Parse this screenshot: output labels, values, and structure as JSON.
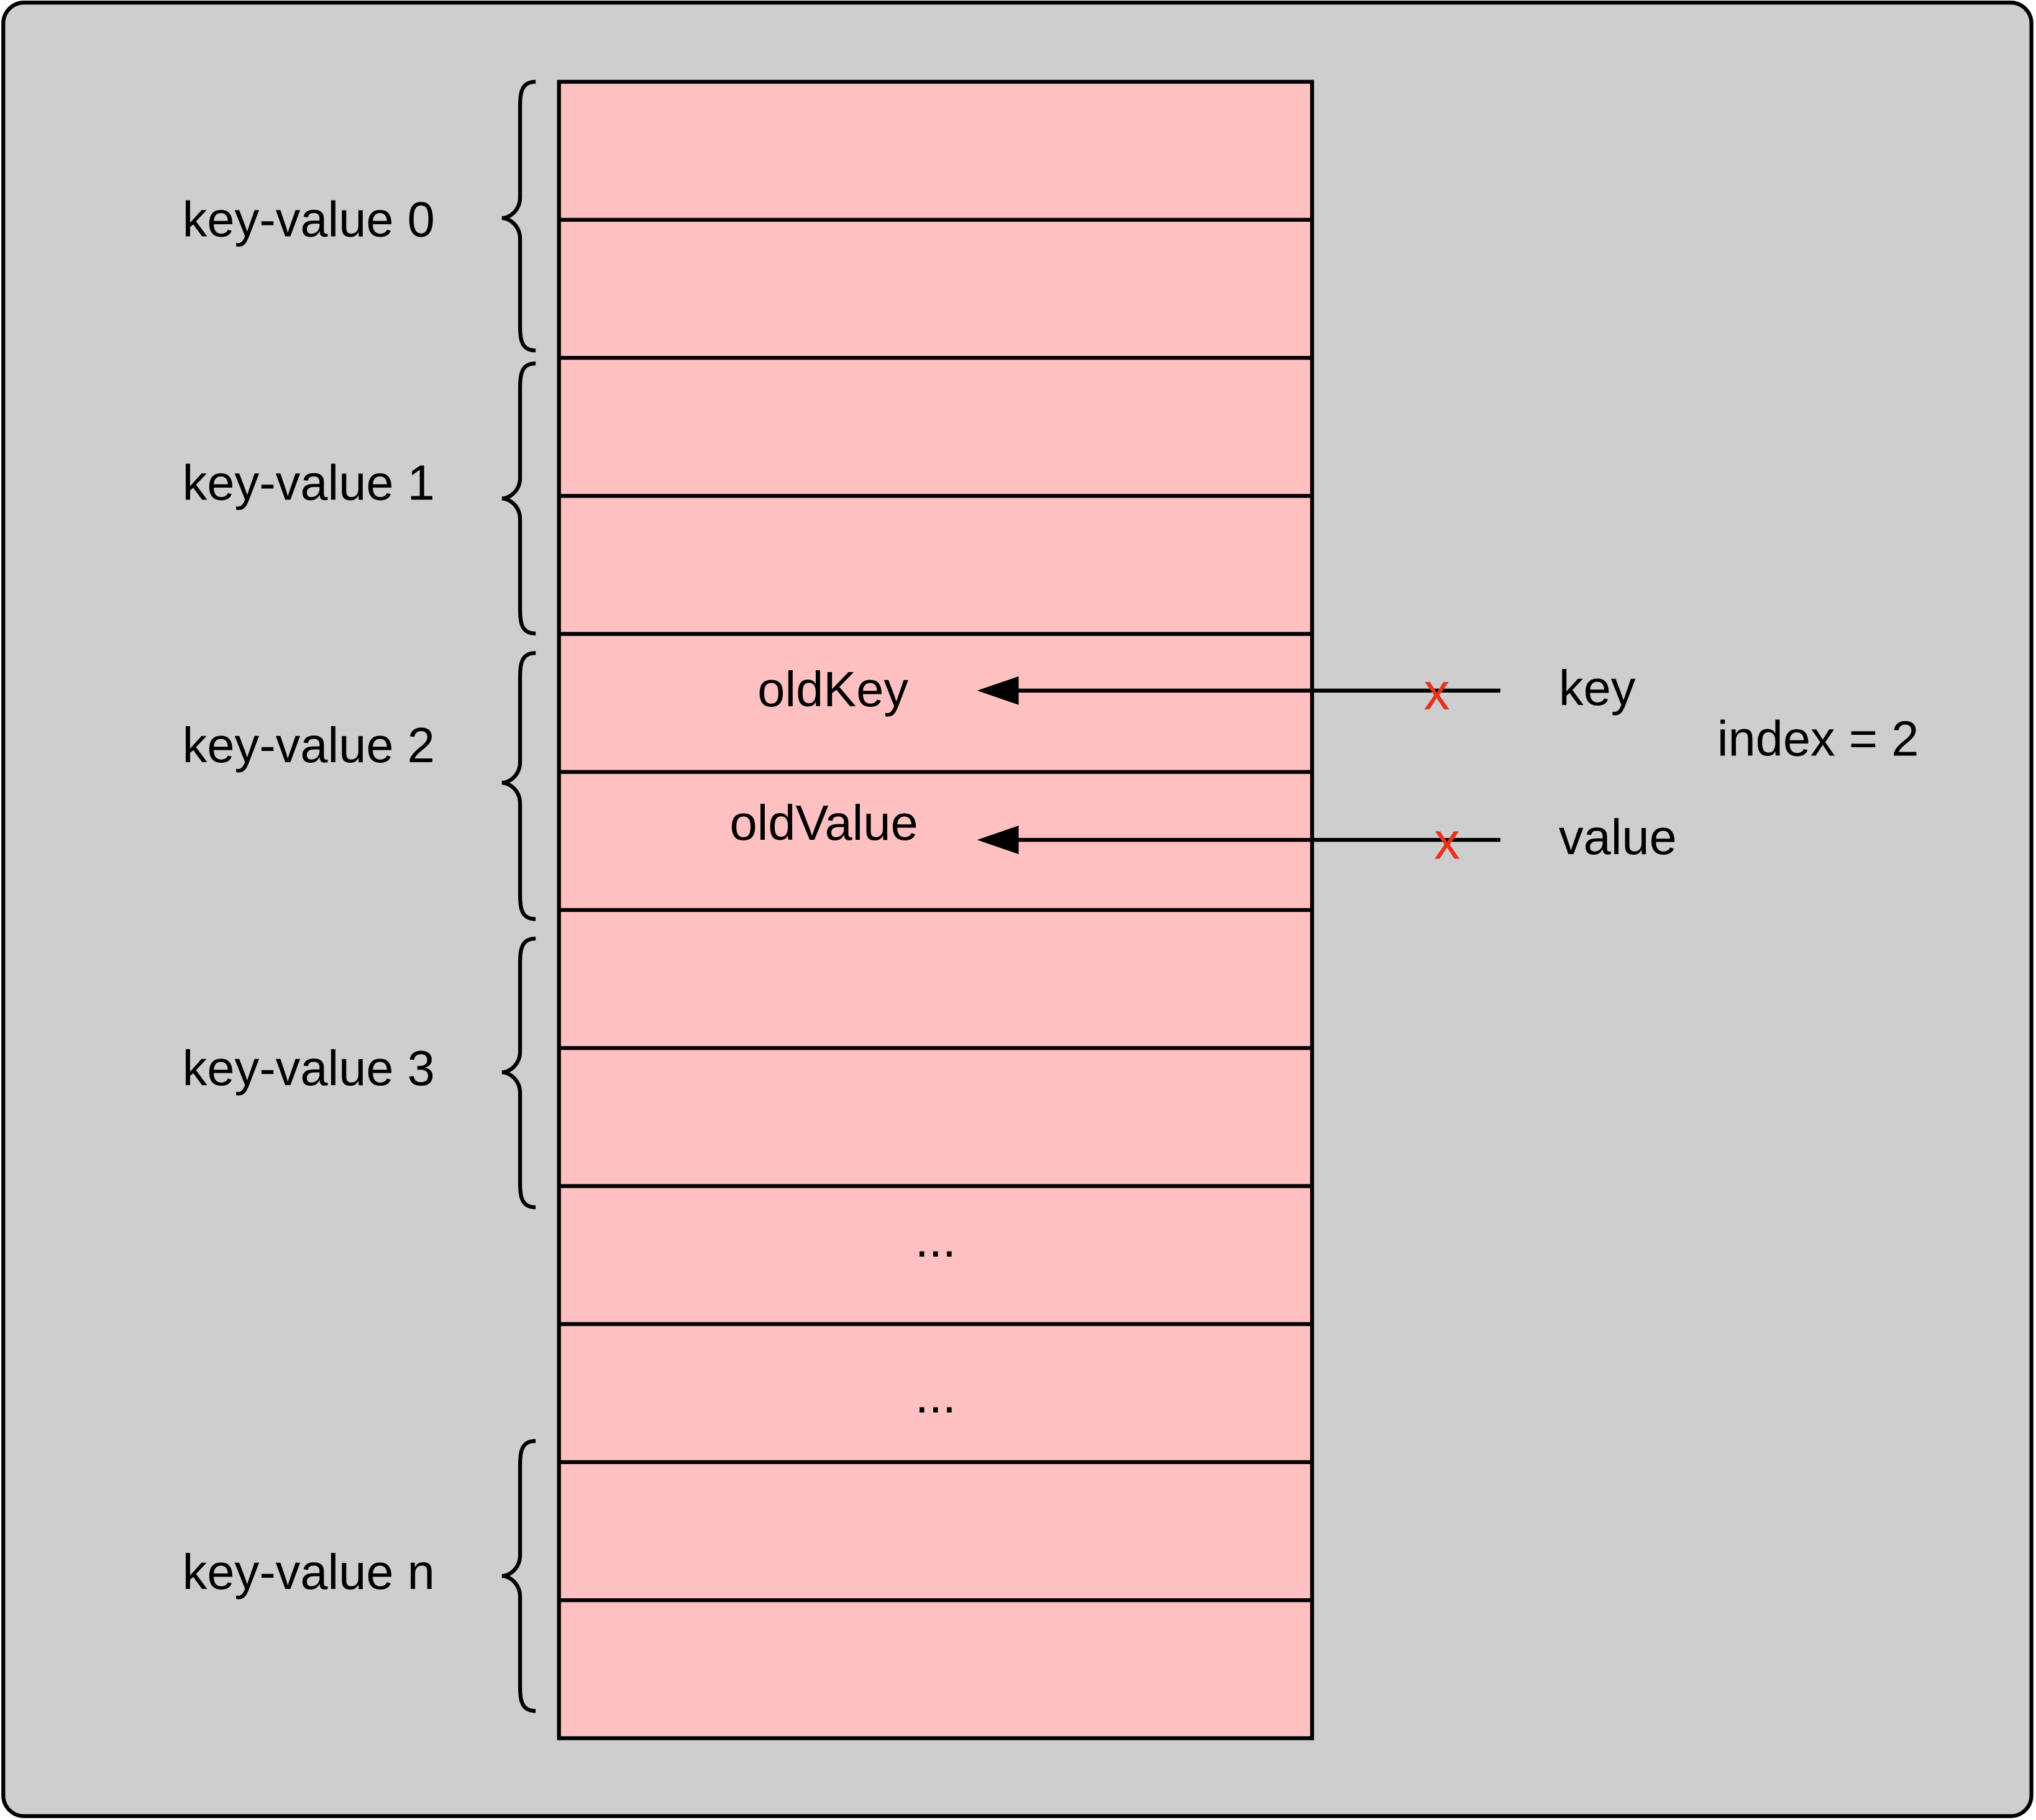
{
  "groups": [
    "key-value 0",
    "key-value 1",
    "key-value 2",
    "key-value 3",
    "key-value n"
  ],
  "array": {
    "old_key": "oldKey",
    "old_value": "oldValue",
    "ellipses": [
      "...",
      "..."
    ]
  },
  "incoming": {
    "key": "key",
    "value": "value",
    "index": "index = 2",
    "marks": [
      "x",
      "x"
    ]
  }
}
